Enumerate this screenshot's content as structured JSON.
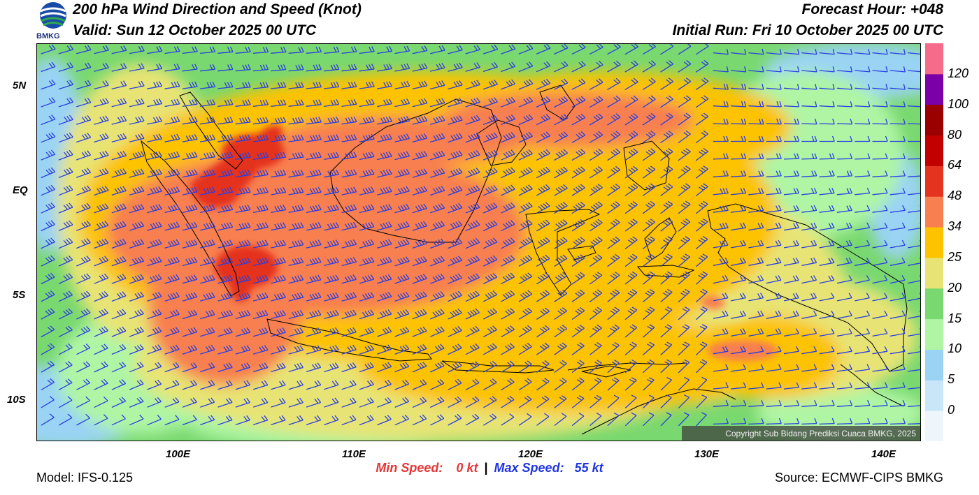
{
  "header": {
    "title": "200 hPa Wind Direction and Speed (Knot)",
    "valid": "Valid: Sun 12 October 2025 00 UTC",
    "forecast_hour": "Forecast Hour: +048",
    "initial_run": "Initial Run: Fri 10 October 2025 00 UTC"
  },
  "logo": {
    "text": "BMKG",
    "colors": {
      "blue": "#1a4aa8",
      "green": "#2fa84f"
    }
  },
  "axes": {
    "lat_labels": [
      "5N",
      "EQ",
      "5S",
      "10S"
    ],
    "lon_labels": [
      "100E",
      "110E",
      "120E",
      "130E",
      "140E"
    ]
  },
  "colorbar": {
    "labels": [
      "0",
      "5",
      "10",
      "15",
      "20",
      "25",
      "34",
      "48",
      "64",
      "80",
      "100",
      "120"
    ],
    "colors": [
      "#eef6fb",
      "#c8e6f7",
      "#9ad3f4",
      "#aff5a4",
      "#79d86f",
      "#e7e475",
      "#fdc200",
      "#f87f50",
      "#e4331e",
      "#c20000",
      "#9a0000",
      "#7b00a8",
      "#f66b8a"
    ]
  },
  "copyright": "Copyright Sub Bidang Prediksi Cuaca BMKG, 2025",
  "footer": {
    "model": "Model: IFS-0.125",
    "min_speed_label": "Min Speed:",
    "min_speed_value": "0 kt",
    "separator": "|",
    "max_speed_label": "Max Speed:",
    "max_speed_value": "55 kt",
    "source": "Source: ECMWF-CIPS BMKG"
  },
  "colors": {
    "barb": "#2a3fe0",
    "min_speed": "#e33636",
    "max_speed": "#1f35e0"
  }
}
